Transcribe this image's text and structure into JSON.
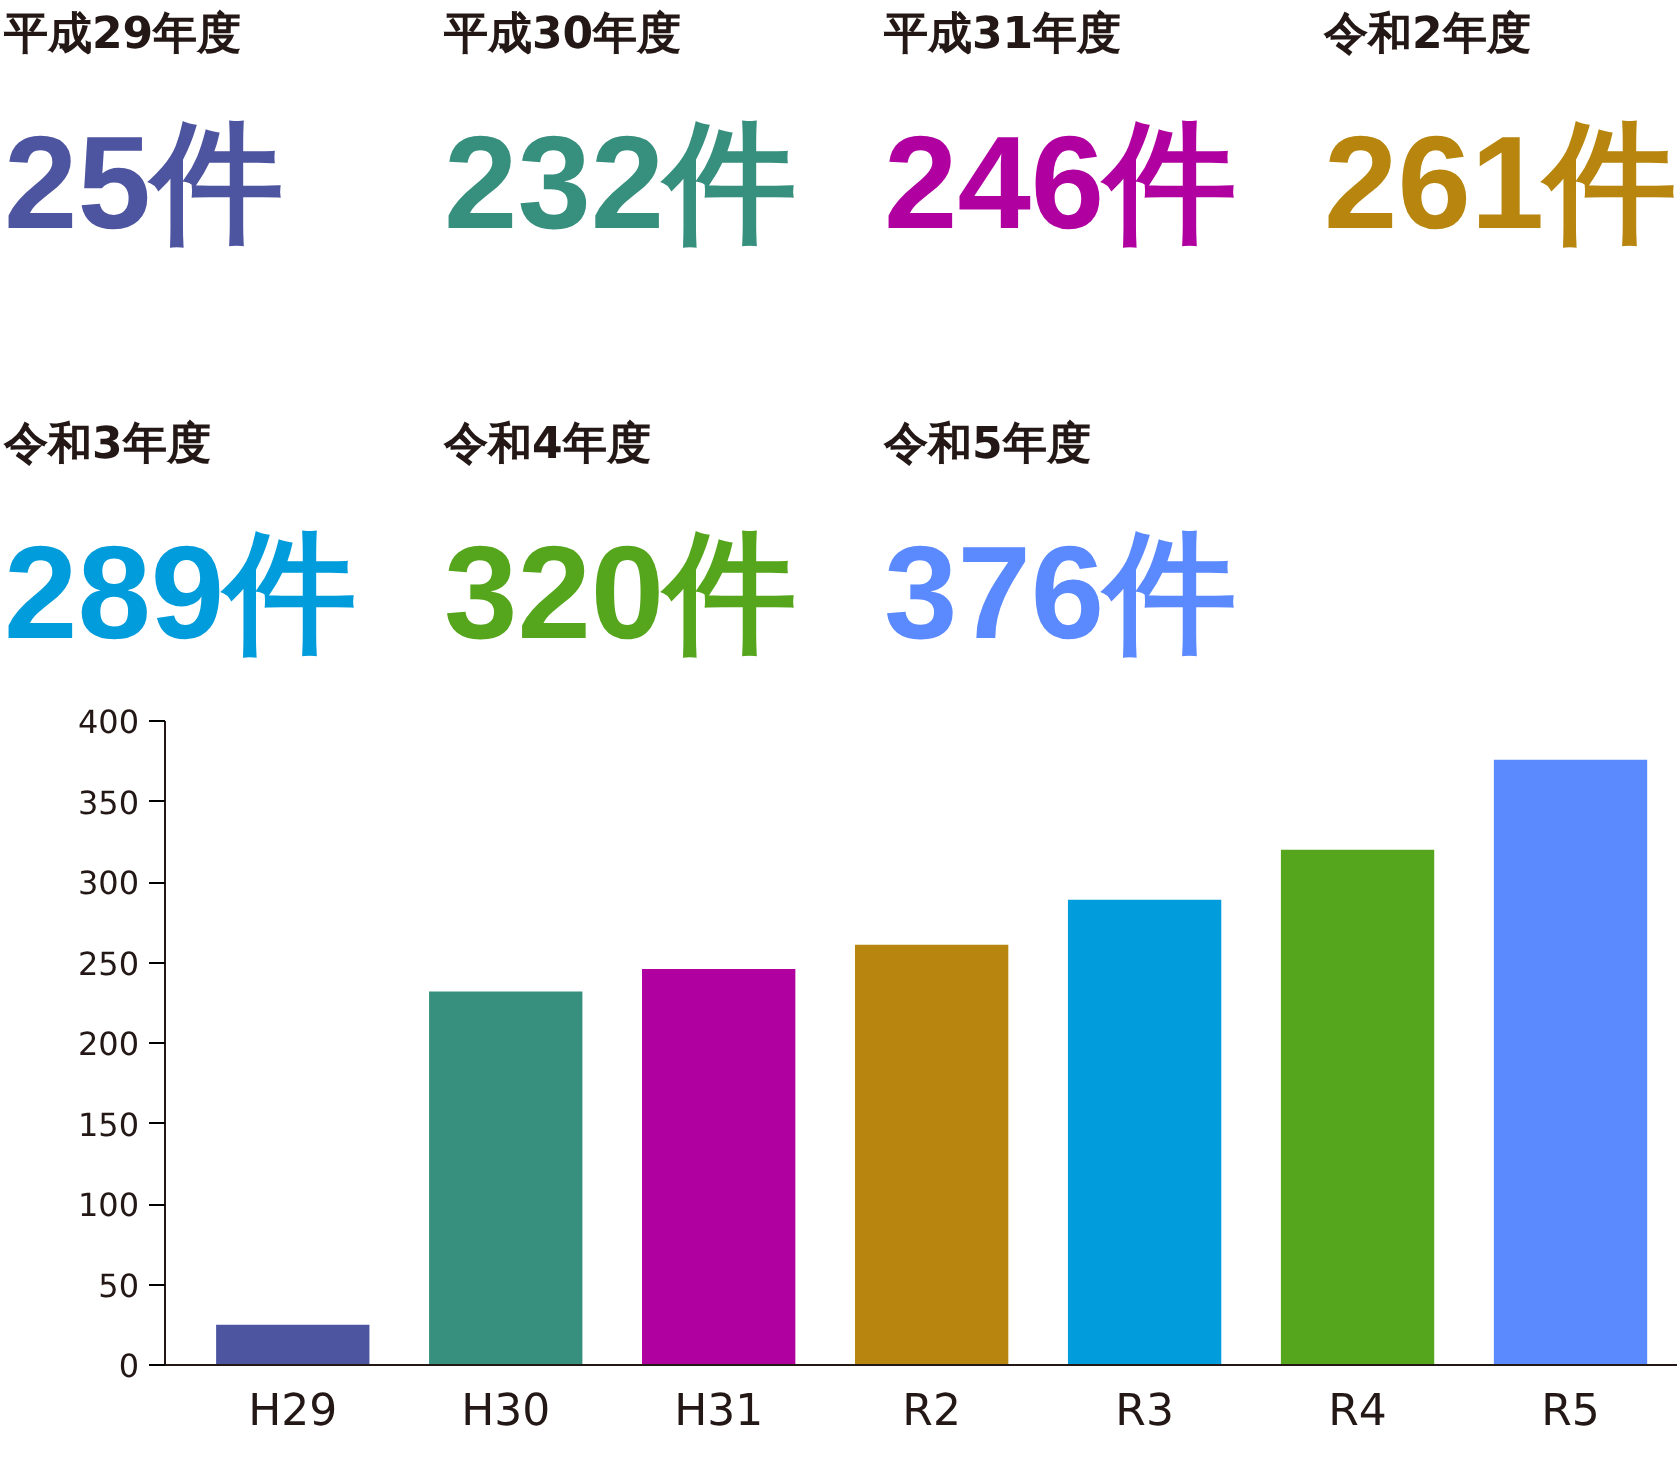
{
  "chart_data": {
    "type": "bar",
    "categories": [
      "H29",
      "H30",
      "H31",
      "R2",
      "R3",
      "R4",
      "R5"
    ],
    "values": [
      25,
      232,
      246,
      261,
      289,
      320,
      376
    ],
    "colors": [
      "#4e55a0",
      "#37907e",
      "#b000a0",
      "#b8860e",
      "#009cdb",
      "#55a61c",
      "#5b8aff"
    ],
    "ylim": [
      0,
      400
    ],
    "yticks": [
      0,
      50,
      100,
      150,
      200,
      250,
      300,
      350,
      400
    ],
    "annotations": [
      "平成29年度",
      "25件",
      "平成30年度",
      "232件",
      "平成31年度",
      "246件",
      "令和2年度",
      "261件",
      "令和3年度",
      "289件",
      "令和4年度",
      "320件",
      "令和5年度",
      "376件"
    ],
    "grid": false
  }
}
